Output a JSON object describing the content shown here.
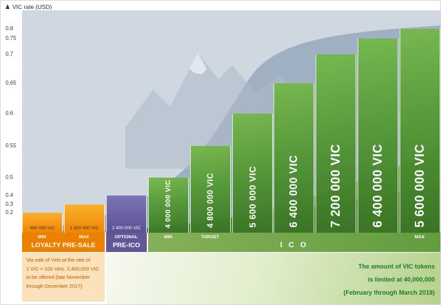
{
  "chart_data": {
    "type": "bar",
    "title": "VIC rate (USD)",
    "ylabel": "VIC rate (USD)",
    "ylim": [
      0,
      0.8
    ],
    "y_axis_nonlinear": true,
    "yticks": [
      "0.2",
      "0.3",
      "0.4",
      "0.5",
      "0.55",
      "0.6",
      "0.65",
      "0.7",
      "0.75",
      "0.8"
    ],
    "bars": [
      {
        "label": "480 000 VIC",
        "rate": 0.2,
        "phase": "LOYALTY PRE-SALE",
        "tag": "MIN"
      },
      {
        "label": "1 920 000 VIC",
        "rate": 0.3,
        "phase": "LOYALTY PRE-SALE",
        "tag": "MAX"
      },
      {
        "label": "2 400 000 VIC",
        "rate": 0.4,
        "phase": "PRE-ICO",
        "tag": "OPTIONAL"
      },
      {
        "label": "4 000 000 VIC",
        "rate": 0.5,
        "phase": "ICO",
        "tag": "MIN"
      },
      {
        "label": "4 800 000 VIC",
        "rate": 0.55,
        "phase": "ICO",
        "tag": "TARGET"
      },
      {
        "label": "5 600 000 VIC",
        "rate": 0.6,
        "phase": "ICO",
        "tag": ""
      },
      {
        "label": "6 400 000 VIC",
        "rate": 0.65,
        "phase": "ICO",
        "tag": ""
      },
      {
        "label": "7 200 000 VIC",
        "rate": 0.7,
        "phase": "ICO",
        "tag": ""
      },
      {
        "label": "6 400 000 VIC",
        "rate": 0.75,
        "phase": "ICO",
        "tag": ""
      },
      {
        "label": "5 600 000 VIC",
        "rate": 0.8,
        "phase": "ICO",
        "tag": "MAX"
      }
    ]
  },
  "strip": {
    "loyalty": {
      "min": "MIN",
      "max": "MAX",
      "title": "LOYALTY PRE-SALE"
    },
    "pre_ico": {
      "optional": "OPTIONAL",
      "title": "PRE-ICO"
    },
    "ico": {
      "min": "MIN",
      "target": "TARGET",
      "max": "MAX",
      "title": "I C O"
    }
  },
  "notes": {
    "left": {
      "lines": [
        "Via sale of Virts at the rate of",
        "1 VIC = 100 Virts. 2,400,000 VIC",
        "to be offered (late November",
        "through December 2017)"
      ]
    },
    "right": {
      "lines": [
        "The amount of VIC tokens",
        "is limited at 40,000,000",
        "(February through March 2018)"
      ]
    }
  },
  "colors": {
    "loyalty_orange": "#ec8100",
    "pre_ico_purple": "#5f5798",
    "ico_green": "#4f9636",
    "note_left_bg": "#fbe2ba",
    "note_left_text": "#c05f00",
    "note_right_text": "#1e7a33"
  }
}
